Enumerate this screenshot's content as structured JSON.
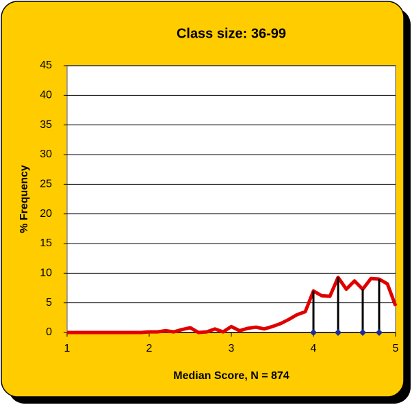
{
  "chart_data": {
    "type": "line",
    "title": "Class size: 36-99",
    "xlabel": "Median Score, N = 874",
    "ylabel": "% Frequency",
    "xlim": [
      1,
      5
    ],
    "xticks": [
      1,
      2,
      3,
      4,
      5
    ],
    "ylim": [
      0,
      45
    ],
    "yticks": [
      0,
      5,
      10,
      15,
      20,
      25,
      30,
      35,
      40,
      45
    ],
    "grid": true,
    "series": [
      {
        "color": "#e00000",
        "kind": "line",
        "x": [
          1,
          1.1,
          1.2,
          1.3,
          1.4,
          1.5,
          1.6,
          1.7,
          1.8,
          1.9,
          2,
          2.1,
          2.2,
          2.3,
          2.4,
          2.5,
          2.6,
          2.7,
          2.8,
          2.9,
          3,
          3.1,
          3.2,
          3.3,
          3.4,
          3.5,
          3.6,
          3.7,
          3.8,
          3.9,
          4,
          4.1,
          4.2,
          4.3,
          4.4,
          4.5,
          4.6,
          4.7,
          4.8,
          4.9,
          5
        ],
        "values": [
          0,
          0,
          0,
          0,
          0,
          0,
          0,
          0,
          0,
          0,
          0.1,
          0.1,
          0.3,
          0.1,
          0.5,
          0.8,
          0,
          0.1,
          0.6,
          0.1,
          1.0,
          0.3,
          0.7,
          0.9,
          0.6,
          1.0,
          1.5,
          2.2,
          3.0,
          3.5,
          7.0,
          6.2,
          6.1,
          9.3,
          7.3,
          8.7,
          7.3,
          9.1,
          9.0,
          8.2,
          4.5
        ]
      },
      {
        "color": "#000000",
        "marker_color": "#1a2e99",
        "kind": "stem",
        "x": [
          4,
          4.3,
          4.6,
          4.8
        ],
        "values": [
          7.0,
          9.3,
          7.3,
          9.0
        ]
      }
    ]
  }
}
